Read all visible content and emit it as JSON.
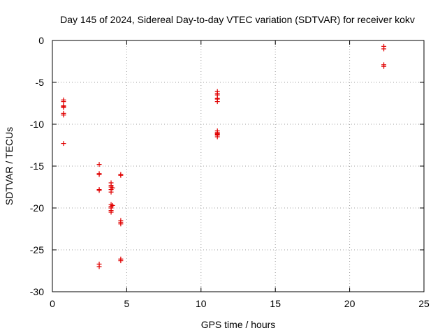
{
  "chart_data": {
    "type": "scatter",
    "title": "Day 145 of 2024, Sidereal Day-to-day VTEC variation (SDTVAR) for receiver kokv",
    "xlabel": "GPS time / hours",
    "ylabel": "SDTVAR / TECUs",
    "xlim": [
      0,
      25
    ],
    "ylim": [
      -30,
      0
    ],
    "xticks": [
      0,
      5,
      10,
      15,
      20,
      25
    ],
    "yticks": [
      0,
      -5,
      -10,
      -15,
      -20,
      -25,
      -30
    ],
    "xtick_labels": [
      "0",
      "5",
      "10",
      "15",
      "20",
      "25"
    ],
    "ytick_labels": [
      "0",
      "-5",
      "-10",
      "-15",
      "-20",
      "-25",
      "-30"
    ],
    "grid": true,
    "marker": "+",
    "color": "#e00000",
    "series": [
      {
        "name": "SDTVAR",
        "points": [
          [
            0.75,
            -7.1
          ],
          [
            0.75,
            -7.3
          ],
          [
            0.75,
            -7.8
          ],
          [
            0.75,
            -7.9
          ],
          [
            0.75,
            -8.0
          ],
          [
            0.75,
            -8.7
          ],
          [
            0.75,
            -8.9
          ],
          [
            0.75,
            -12.3
          ],
          [
            3.15,
            -14.8
          ],
          [
            3.15,
            -15.9
          ],
          [
            3.15,
            -16.0
          ],
          [
            3.15,
            -17.8
          ],
          [
            3.15,
            -17.9
          ],
          [
            3.15,
            -26.7
          ],
          [
            3.15,
            -27.0
          ],
          [
            3.95,
            -17.0
          ],
          [
            3.95,
            -17.3
          ],
          [
            3.95,
            -17.5
          ],
          [
            3.95,
            -17.8
          ],
          [
            3.95,
            -18.1
          ],
          [
            3.95,
            -19.6
          ],
          [
            3.95,
            -19.8
          ],
          [
            3.95,
            -20.0
          ],
          [
            3.95,
            -20.3
          ],
          [
            3.95,
            -20.5
          ],
          [
            4.05,
            -17.6
          ],
          [
            4.05,
            -19.7
          ],
          [
            4.6,
            -16.0
          ],
          [
            4.6,
            -16.1
          ],
          [
            4.6,
            -21.5
          ],
          [
            4.6,
            -21.7
          ],
          [
            4.6,
            -21.9
          ],
          [
            4.6,
            -26.1
          ],
          [
            4.6,
            -26.3
          ],
          [
            11.1,
            -6.1
          ],
          [
            11.1,
            -6.3
          ],
          [
            11.1,
            -6.5
          ],
          [
            11.1,
            -6.9
          ],
          [
            11.1,
            -7.0
          ],
          [
            11.1,
            -7.3
          ],
          [
            11.1,
            -10.8
          ],
          [
            11.1,
            -11.0
          ],
          [
            11.1,
            -11.1
          ],
          [
            11.1,
            -11.2
          ],
          [
            11.1,
            -11.3
          ],
          [
            11.1,
            -11.5
          ],
          [
            22.3,
            -0.7
          ],
          [
            22.3,
            -1.0
          ],
          [
            22.3,
            -2.9
          ],
          [
            22.3,
            -3.1
          ]
        ]
      }
    ]
  }
}
